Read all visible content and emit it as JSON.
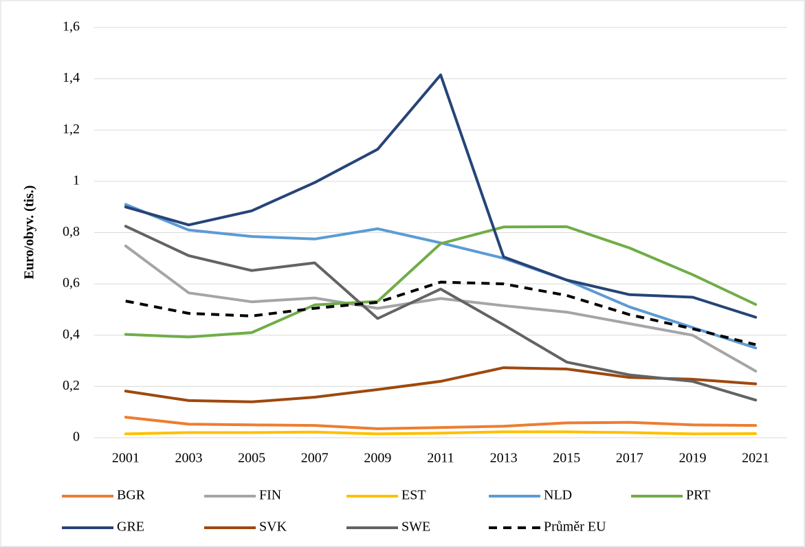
{
  "chart_data": {
    "type": "line",
    "ylabel": "Euro/obyv. (tis.)",
    "categories": [
      "2001",
      "2003",
      "2005",
      "2007",
      "2009",
      "2011",
      "2013",
      "2015",
      "2017",
      "2019",
      "2021"
    ],
    "ylim": [
      0,
      1.6
    ],
    "yticks": [
      0,
      {
        "value": 0.2,
        "label": "0,2"
      },
      {
        "value": 0.4,
        "label": "0,4"
      },
      {
        "value": 0.6,
        "label": "0,6"
      },
      {
        "value": 0.8,
        "label": "0,8"
      },
      1,
      {
        "value": 1.2,
        "label": "1,2"
      },
      {
        "value": 1.4,
        "label": "1,4"
      },
      {
        "value": 1.6,
        "label": "1,6"
      }
    ],
    "grid": true,
    "legend": "bottom",
    "series": [
      {
        "name": "BGR",
        "color": "#ED7D31",
        "values": [
          0.08,
          0.053,
          0.05,
          0.048,
          0.035,
          0.04,
          0.045,
          0.058,
          0.06,
          0.05,
          0.048
        ]
      },
      {
        "name": "FIN",
        "color": "#A5A5A5",
        "values": [
          0.748,
          0.565,
          0.53,
          0.545,
          0.505,
          0.543,
          0.515,
          0.49,
          0.445,
          0.4,
          0.26
        ]
      },
      {
        "name": "EST",
        "color": "#FFC000",
        "values": [
          0.015,
          0.02,
          0.02,
          0.022,
          0.015,
          0.018,
          0.023,
          0.023,
          0.02,
          0.015,
          0.016
        ]
      },
      {
        "name": "NLD",
        "color": "#5B9BD5",
        "values": [
          0.91,
          0.81,
          0.785,
          0.775,
          0.815,
          0.76,
          0.7,
          0.615,
          0.51,
          0.43,
          0.35
        ]
      },
      {
        "name": "PRT",
        "color": "#70AD47",
        "values": [
          0.403,
          0.393,
          0.41,
          0.518,
          0.532,
          0.757,
          0.822,
          0.823,
          0.74,
          0.636,
          0.52
        ]
      },
      {
        "name": "GRE",
        "color": "#264478",
        "values": [
          0.9,
          0.83,
          0.885,
          0.995,
          1.125,
          1.415,
          0.705,
          0.615,
          0.558,
          0.548,
          0.47
        ]
      },
      {
        "name": "SVK",
        "color": "#9E480E",
        "values": [
          0.182,
          0.145,
          0.14,
          0.158,
          0.188,
          0.22,
          0.273,
          0.268,
          0.235,
          0.228,
          0.21
        ]
      },
      {
        "name": "SWE",
        "color": "#636363",
        "values": [
          0.825,
          0.71,
          0.652,
          0.682,
          0.465,
          0.58,
          0.44,
          0.295,
          0.245,
          0.22,
          0.147
        ]
      },
      {
        "name": "Průměr EU",
        "color": "#000000",
        "dashed": true,
        "values": [
          0.533,
          0.485,
          0.475,
          0.505,
          0.528,
          0.607,
          0.6,
          0.555,
          0.48,
          0.425,
          0.363
        ]
      }
    ]
  }
}
